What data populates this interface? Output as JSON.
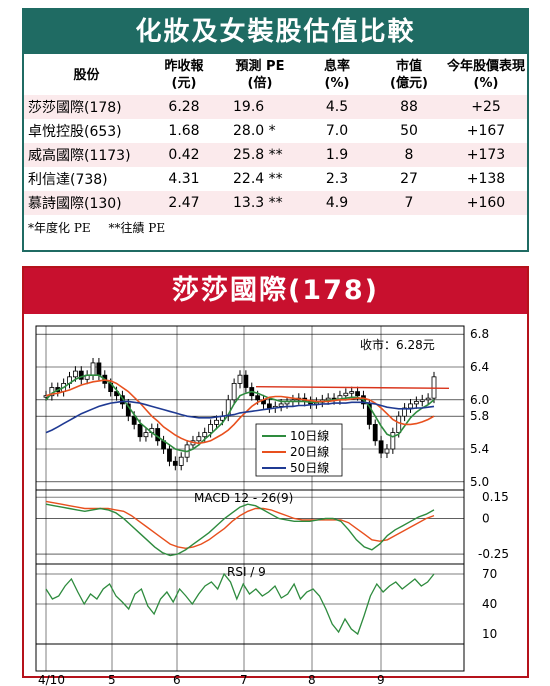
{
  "table": {
    "title": "化妝及女裝股估值比較",
    "headers": [
      {
        "l1": "股份",
        "l2": ""
      },
      {
        "l1": "昨收報",
        "l2": "(元)"
      },
      {
        "l1": "預測 PE",
        "l2": "(倍)"
      },
      {
        "l1": "息率",
        "l2": "(%)"
      },
      {
        "l1": "市值",
        "l2": "(億元)"
      },
      {
        "l1": "今年股價表現",
        "l2": "(%)"
      }
    ],
    "rows": [
      {
        "name": "莎莎國際(178)",
        "close": "6.28",
        "pe": "19.6",
        "yield": "4.5",
        "mcap": "88",
        "perf": "+25"
      },
      {
        "name": "卓悅控股(653)",
        "close": "1.68",
        "pe": "28.0 *",
        "yield": "7.0",
        "mcap": "50",
        "perf": "+167"
      },
      {
        "name": "威高國際(1173)",
        "close": "0.42",
        "pe": "25.8 **",
        "yield": "1.9",
        "mcap": "8",
        "perf": "+173"
      },
      {
        "name": "利信達(738)",
        "close": "4.31",
        "pe": "22.4 **",
        "yield": "2.3",
        "mcap": "27",
        "perf": "+138"
      },
      {
        "name": "慕詩國際(130)",
        "close": "2.47",
        "pe": "13.3 **",
        "yield": "4.9",
        "mcap": "7",
        "perf": "+160"
      }
    ],
    "footnote1": "*年度化 PE",
    "footnote2": "**往績 PE"
  },
  "chart": {
    "title": "莎莎國際(178)",
    "close_label": "收市：6.28元"
  },
  "chart_data": [
    {
      "type": "candlestick+line",
      "x_ticks": [
        "4/10",
        "5",
        "6",
        "7",
        "8",
        "9"
      ],
      "y_ticks": [
        6.8,
        6.4,
        6.0,
        5.8,
        5.4,
        5.0
      ],
      "ylim": [
        4.9,
        6.9
      ],
      "legend": [
        "10日線",
        "20日線",
        "50日線"
      ],
      "legend_colors": [
        "#2e8b3e",
        "#e8501e",
        "#1f3a93"
      ],
      "resistance_line": {
        "from": 6.16,
        "to": 6.14,
        "color": "#d9331a"
      },
      "close": [
        6.05,
        6.15,
        6.1,
        6.2,
        6.28,
        6.35,
        6.25,
        6.3,
        6.45,
        6.3,
        6.2,
        6.1,
        6.05,
        5.95,
        5.8,
        5.7,
        5.55,
        5.6,
        5.65,
        5.5,
        5.4,
        5.25,
        5.2,
        5.3,
        5.45,
        5.5,
        5.55,
        5.6,
        5.7,
        5.75,
        5.8,
        6.0,
        6.2,
        6.3,
        6.15,
        6.05,
        6.0,
        5.95,
        5.9,
        5.92,
        5.95,
        5.98,
        6.0,
        6.02,
        5.98,
        5.95,
        5.97,
        6.0,
        6.02,
        6.0,
        6.05,
        6.08,
        6.1,
        6.05,
        5.95,
        5.7,
        5.5,
        5.35,
        5.4,
        5.6,
        5.8,
        5.9,
        5.95,
        5.98,
        6.0,
        6.02,
        6.28
      ],
      "ma10": [
        6.0,
        6.08,
        6.12,
        6.15,
        6.2,
        6.25,
        6.28,
        6.3,
        6.3,
        6.3,
        6.25,
        6.2,
        6.12,
        6.02,
        5.92,
        5.82,
        5.72,
        5.66,
        5.6,
        5.55,
        5.5,
        5.45,
        5.4,
        5.38,
        5.37,
        5.4,
        5.45,
        5.52,
        5.58,
        5.65,
        5.72,
        5.82,
        5.95,
        6.05,
        6.08,
        6.1,
        6.08,
        6.05,
        6.02,
        6.0,
        5.98,
        5.98,
        5.98,
        5.98,
        5.98,
        5.97,
        5.97,
        5.98,
        5.99,
        6.0,
        6.01,
        6.02,
        6.03,
        6.03,
        6.0,
        5.92,
        5.8,
        5.68,
        5.58,
        5.55,
        5.58,
        5.68,
        5.78,
        5.85,
        5.9,
        5.94,
        6.0
      ],
      "ma20": [
        6.05,
        6.07,
        6.08,
        6.1,
        6.12,
        6.15,
        6.18,
        6.2,
        6.22,
        6.23,
        6.24,
        6.23,
        6.2,
        6.15,
        6.1,
        6.03,
        5.96,
        5.88,
        5.8,
        5.74,
        5.67,
        5.62,
        5.57,
        5.53,
        5.5,
        5.48,
        5.47,
        5.48,
        5.5,
        5.54,
        5.58,
        5.63,
        5.7,
        5.78,
        5.85,
        5.92,
        5.97,
        6.0,
        6.03,
        6.04,
        6.04,
        6.03,
        6.02,
        6.01,
        6.0,
        5.99,
        5.98,
        5.98,
        5.98,
        5.99,
        6.0,
        6.0,
        6.01,
        6.02,
        6.02,
        6.0,
        5.96,
        5.9,
        5.83,
        5.76,
        5.72,
        5.7,
        5.7,
        5.71,
        5.73,
        5.76,
        5.8
      ],
      "ma50": [
        5.6,
        5.63,
        5.67,
        5.71,
        5.75,
        5.79,
        5.83,
        5.86,
        5.89,
        5.92,
        5.94,
        5.96,
        5.97,
        5.98,
        5.98,
        5.97,
        5.96,
        5.94,
        5.92,
        5.9,
        5.88,
        5.86,
        5.84,
        5.82,
        5.8,
        5.79,
        5.78,
        5.78,
        5.78,
        5.79,
        5.8,
        5.81,
        5.82,
        5.84,
        5.85,
        5.86,
        5.87,
        5.88,
        5.89,
        5.9,
        5.91,
        5.92,
        5.92,
        5.93,
        5.93,
        5.94,
        5.94,
        5.95,
        5.95,
        5.96,
        5.96,
        5.96,
        5.97,
        5.97,
        5.97,
        5.96,
        5.95,
        5.93,
        5.91,
        5.9,
        5.89,
        5.89,
        5.89,
        5.9,
        5.9,
        5.91,
        5.92
      ]
    },
    {
      "type": "line",
      "title": "MACD 12 - 26(9)",
      "y_ticks": [
        0.15,
        0,
        -0.25
      ],
      "ylim": [
        -0.32,
        0.2
      ],
      "series_colors": [
        "#2e8b3e",
        "#e8501e"
      ],
      "macd": [
        0.1,
        0.09,
        0.08,
        0.07,
        0.06,
        0.05,
        0.06,
        0.07,
        0.06,
        0.04,
        0.0,
        -0.05,
        -0.1,
        -0.15,
        -0.2,
        -0.24,
        -0.26,
        -0.25,
        -0.22,
        -0.18,
        -0.14,
        -0.1,
        -0.05,
        0.0,
        0.04,
        0.08,
        0.1,
        0.09,
        0.06,
        0.03,
        0.0,
        -0.01,
        -0.02,
        -0.02,
        -0.02,
        -0.01,
        0.0,
        0.0,
        -0.02,
        -0.08,
        -0.15,
        -0.2,
        -0.22,
        -0.18,
        -0.12,
        -0.08,
        -0.05,
        -0.02,
        0.01,
        0.03,
        0.06
      ],
      "signal": [
        0.12,
        0.11,
        0.1,
        0.09,
        0.08,
        0.07,
        0.07,
        0.07,
        0.07,
        0.06,
        0.05,
        0.02,
        -0.02,
        -0.06,
        -0.1,
        -0.14,
        -0.18,
        -0.2,
        -0.21,
        -0.2,
        -0.18,
        -0.15,
        -0.11,
        -0.07,
        -0.02,
        0.02,
        0.05,
        0.07,
        0.07,
        0.06,
        0.04,
        0.02,
        0.0,
        -0.01,
        -0.01,
        -0.01,
        -0.01,
        -0.01,
        -0.01,
        -0.03,
        -0.07,
        -0.11,
        -0.15,
        -0.16,
        -0.15,
        -0.12,
        -0.09,
        -0.06,
        -0.03,
        0.0,
        0.02
      ]
    },
    {
      "type": "line",
      "title": "RSI / 9",
      "y_ticks": [
        70,
        40,
        10
      ],
      "ylim": [
        0,
        80
      ],
      "series_color": "#2e8b3e",
      "values": [
        55,
        45,
        48,
        58,
        65,
        52,
        40,
        50,
        45,
        55,
        60,
        48,
        42,
        35,
        50,
        55,
        38,
        30,
        45,
        52,
        42,
        55,
        48,
        40,
        50,
        58,
        62,
        55,
        70,
        62,
        45,
        60,
        50,
        55,
        48,
        52,
        58,
        46,
        50,
        60,
        45,
        52,
        55,
        48,
        35,
        20,
        12,
        25,
        15,
        10,
        28,
        48,
        60,
        52,
        58,
        62,
        55,
        60,
        65,
        58,
        62,
        70
      ]
    }
  ]
}
